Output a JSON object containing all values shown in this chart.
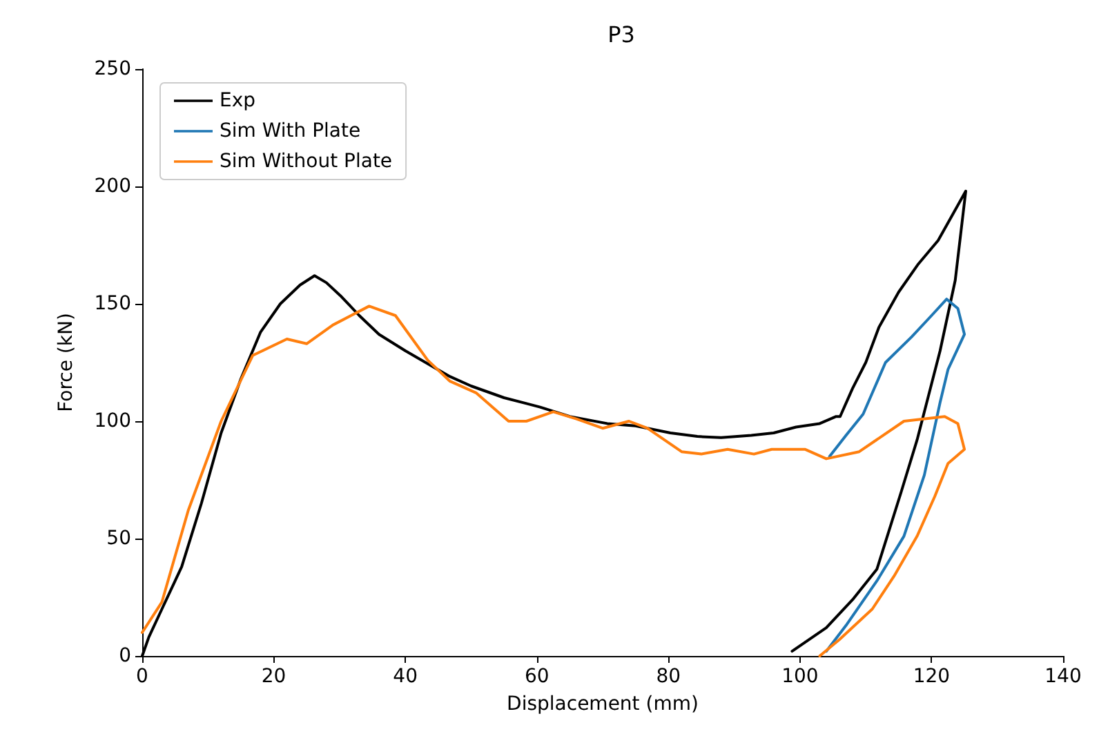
{
  "chart_data": {
    "type": "line",
    "title": "P3",
    "xlabel": "Displacement (mm)",
    "ylabel": "Force (kN)",
    "xlim": [
      0,
      140
    ],
    "ylim": [
      0,
      250
    ],
    "xticks": [
      0,
      20,
      40,
      60,
      80,
      100,
      120,
      140
    ],
    "yticks": [
      0,
      50,
      100,
      150,
      200,
      250
    ],
    "grid": false,
    "legend": "top left",
    "marker": "none",
    "line_style": "solid",
    "series": [
      {
        "name": "Exp",
        "color": "#000000",
        "x": [
          0,
          1,
          3,
          6,
          9,
          12,
          15,
          18,
          21,
          24,
          26.2,
          28,
          30.3,
          33,
          36,
          40,
          46.8,
          50,
          55,
          60.5,
          65,
          70.7,
          75,
          80.3,
          84.4,
          88,
          92.6,
          96,
          99.4,
          103,
          105.5,
          106.1,
          108,
          110,
          112,
          115,
          118,
          121,
          123,
          125.2,
          123.6,
          121.3,
          117.8,
          115.4,
          111.7,
          108,
          104,
          98.8
        ],
        "values": [
          0,
          8,
          20,
          38,
          65,
          95,
          118,
          138,
          150,
          158,
          162,
          159,
          153,
          145,
          137,
          130,
          119,
          115,
          110,
          106,
          102,
          99,
          98,
          95,
          93.5,
          93,
          94,
          95,
          97.5,
          99,
          102,
          102,
          114,
          125,
          140,
          155,
          167,
          177,
          187,
          198,
          160,
          130,
          92,
          70,
          37,
          24,
          12,
          2
        ]
      },
      {
        "name": "Sim With Plate",
        "color": "#1f77b4",
        "x": [
          104.5,
          107,
          109.6,
          113,
          117,
          120,
          122.3,
          124,
          125,
          122.5,
          121.3,
          118.9,
          115.8,
          111.7,
          107,
          104
        ],
        "values": [
          85,
          94,
          103,
          125,
          136,
          145,
          152,
          148,
          137,
          122,
          108,
          77,
          51,
          32,
          13,
          2
        ]
      },
      {
        "name": "Sim Without Plate",
        "color": "#ff7f0e",
        "x": [
          0,
          3,
          7,
          12,
          16.8,
          22,
          25,
          29,
          34.5,
          38.5,
          43.4,
          46.8,
          50.8,
          55.7,
          58.4,
          62.5,
          66,
          70,
          74,
          76.8,
          82,
          85,
          89,
          93,
          95.7,
          100.8,
          104,
          109,
          115.8,
          122,
          124,
          125,
          122.5,
          120.5,
          117.8,
          114.3,
          111,
          106,
          103
        ],
        "values": [
          10,
          23,
          62,
          100,
          128,
          135,
          133,
          141,
          149,
          145,
          126,
          117,
          112,
          100,
          100,
          104,
          101,
          97,
          100,
          97,
          87,
          86,
          88,
          86,
          88,
          88,
          84,
          87,
          100,
          102,
          99,
          88,
          82,
          68,
          51,
          34,
          20,
          7,
          0
        ]
      }
    ]
  }
}
